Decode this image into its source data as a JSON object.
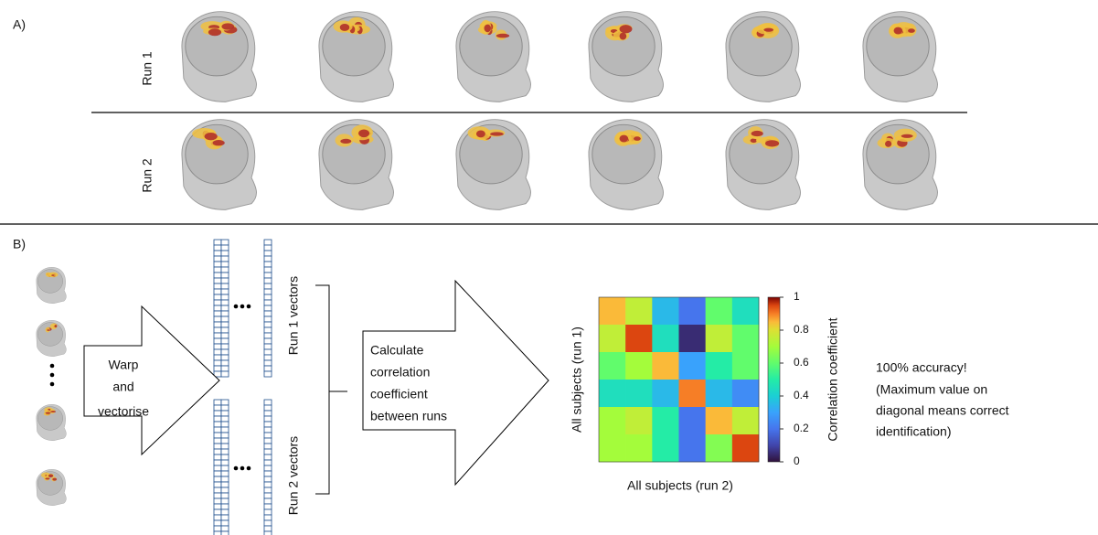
{
  "panel_a": {
    "label": "A)",
    "rows": [
      "Run 1",
      "Run 2"
    ]
  },
  "panel_b": {
    "label": "B)",
    "step1": [
      "Warp",
      "and",
      "vectorise"
    ],
    "vectors": [
      "Run 1 vectors",
      "Run 2 vectors"
    ],
    "step2": [
      "Calculate",
      "correlation",
      "coefficient",
      "between runs"
    ],
    "result": [
      "100% accuracy!",
      "(Maximum value on",
      "diagonal means correct",
      "identification)"
    ]
  },
  "chart_data": {
    "type": "heatmap",
    "xlabel": "All subjects (run 2)",
    "ylabel": "All subjects (run 1)",
    "colorbar_label": "Correlation coefficient",
    "values": [
      [
        0.85,
        0.75,
        0.35,
        0.2,
        0.6,
        0.45
      ],
      [
        0.75,
        0.95,
        0.45,
        0.05,
        0.75,
        0.6
      ],
      [
        0.6,
        0.7,
        0.85,
        0.3,
        0.5,
        0.6
      ],
      [
        0.45,
        0.45,
        0.35,
        0.9,
        0.35,
        0.25
      ],
      [
        0.7,
        0.75,
        0.5,
        0.2,
        0.85,
        0.75
      ],
      [
        0.7,
        0.7,
        0.5,
        0.2,
        0.65,
        0.95
      ]
    ],
    "clim": [
      0,
      1
    ],
    "cticks": [
      0,
      0.2,
      0.4,
      0.6,
      0.8,
      1
    ],
    "colormap": "turbo"
  }
}
